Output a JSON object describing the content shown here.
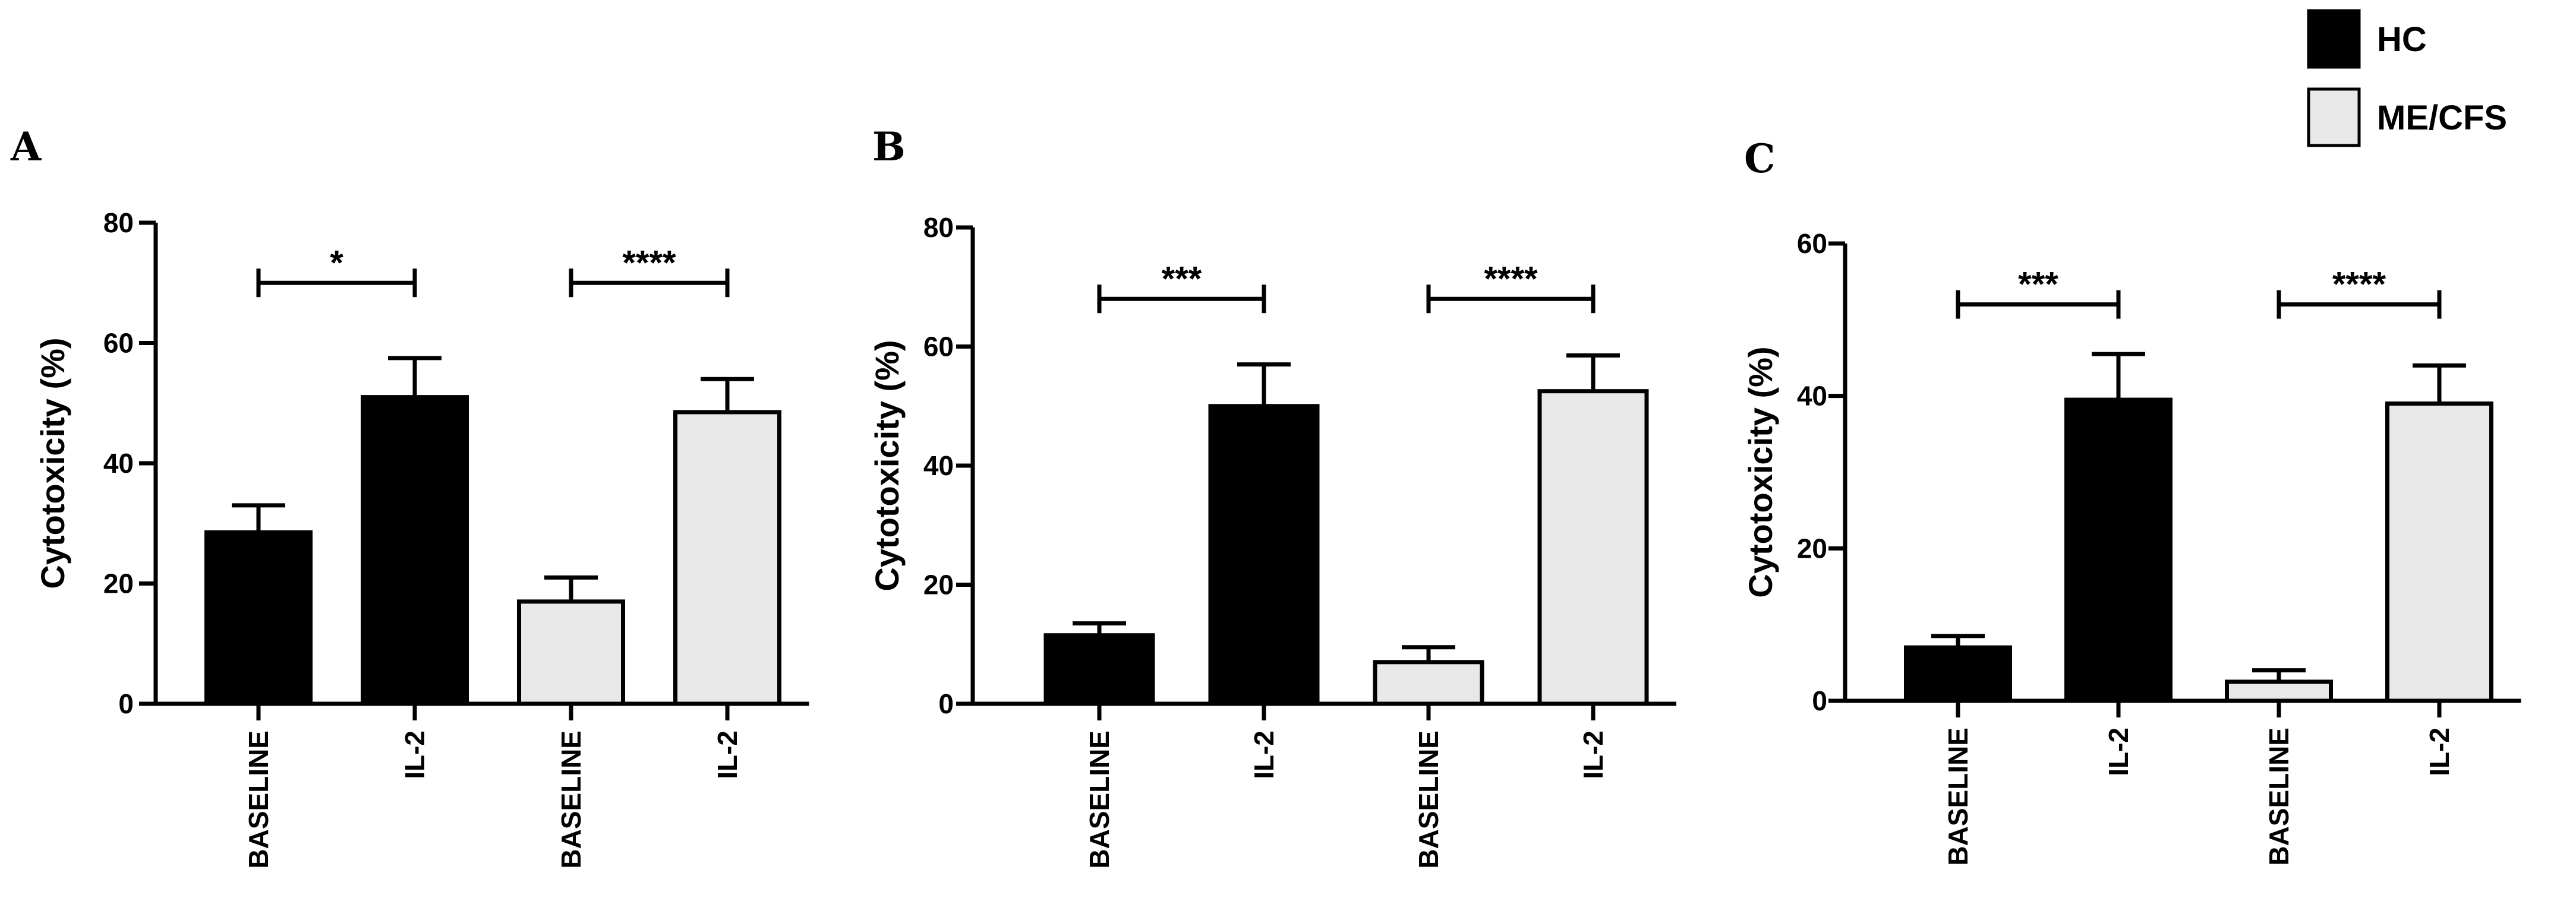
{
  "legend": {
    "entries": [
      {
        "label": "HC",
        "color": "#000000"
      },
      {
        "label": "ME/CFS",
        "color": "#e8e8e8"
      }
    ]
  },
  "chart_data": [
    {
      "type": "bar",
      "panel": "A",
      "ylabel": "Cytotoxicity (%)",
      "ylim": [
        0,
        80
      ],
      "yticks": [
        0,
        20,
        40,
        60,
        80
      ],
      "categories": [
        "BASELINE",
        "IL-2",
        "BASELINE",
        "IL-2"
      ],
      "groups": [
        "HC",
        "HC",
        "ME/CFS",
        "ME/CFS"
      ],
      "values": [
        28.5,
        51,
        17,
        48.5
      ],
      "errors": [
        4.5,
        6.5,
        4,
        5.5
      ],
      "significance": [
        {
          "from": 0,
          "to": 1,
          "label": "*",
          "y": 70
        },
        {
          "from": 2,
          "to": 3,
          "label": "****",
          "y": 70
        }
      ]
    },
    {
      "type": "bar",
      "panel": "B",
      "ylabel": "Cytotoxicity (%)",
      "ylim": [
        0,
        80
      ],
      "yticks": [
        0,
        20,
        40,
        60,
        80
      ],
      "categories": [
        "BASELINE",
        "IL-2",
        "BASELINE",
        "IL-2"
      ],
      "groups": [
        "HC",
        "HC",
        "ME/CFS",
        "ME/CFS"
      ],
      "values": [
        11.5,
        50,
        7,
        52.5
      ],
      "errors": [
        2,
        7,
        2.5,
        6
      ],
      "significance": [
        {
          "from": 0,
          "to": 1,
          "label": "***",
          "y": 68
        },
        {
          "from": 2,
          "to": 3,
          "label": "****",
          "y": 68
        }
      ]
    },
    {
      "type": "bar",
      "panel": "C",
      "ylabel": "Cytotoxicity (%)",
      "ylim": [
        0,
        60
      ],
      "yticks": [
        0,
        20,
        40,
        60
      ],
      "categories": [
        "BASELINE",
        "IL-2",
        "BASELINE",
        "IL-2"
      ],
      "groups": [
        "HC",
        "HC",
        "ME/CFS",
        "ME/CFS"
      ],
      "values": [
        7,
        39.5,
        2.5,
        39
      ],
      "errors": [
        1.5,
        6,
        1.5,
        5
      ],
      "significance": [
        {
          "from": 0,
          "to": 1,
          "label": "***",
          "y": 52
        },
        {
          "from": 2,
          "to": 3,
          "label": "****",
          "y": 52
        }
      ]
    }
  ]
}
